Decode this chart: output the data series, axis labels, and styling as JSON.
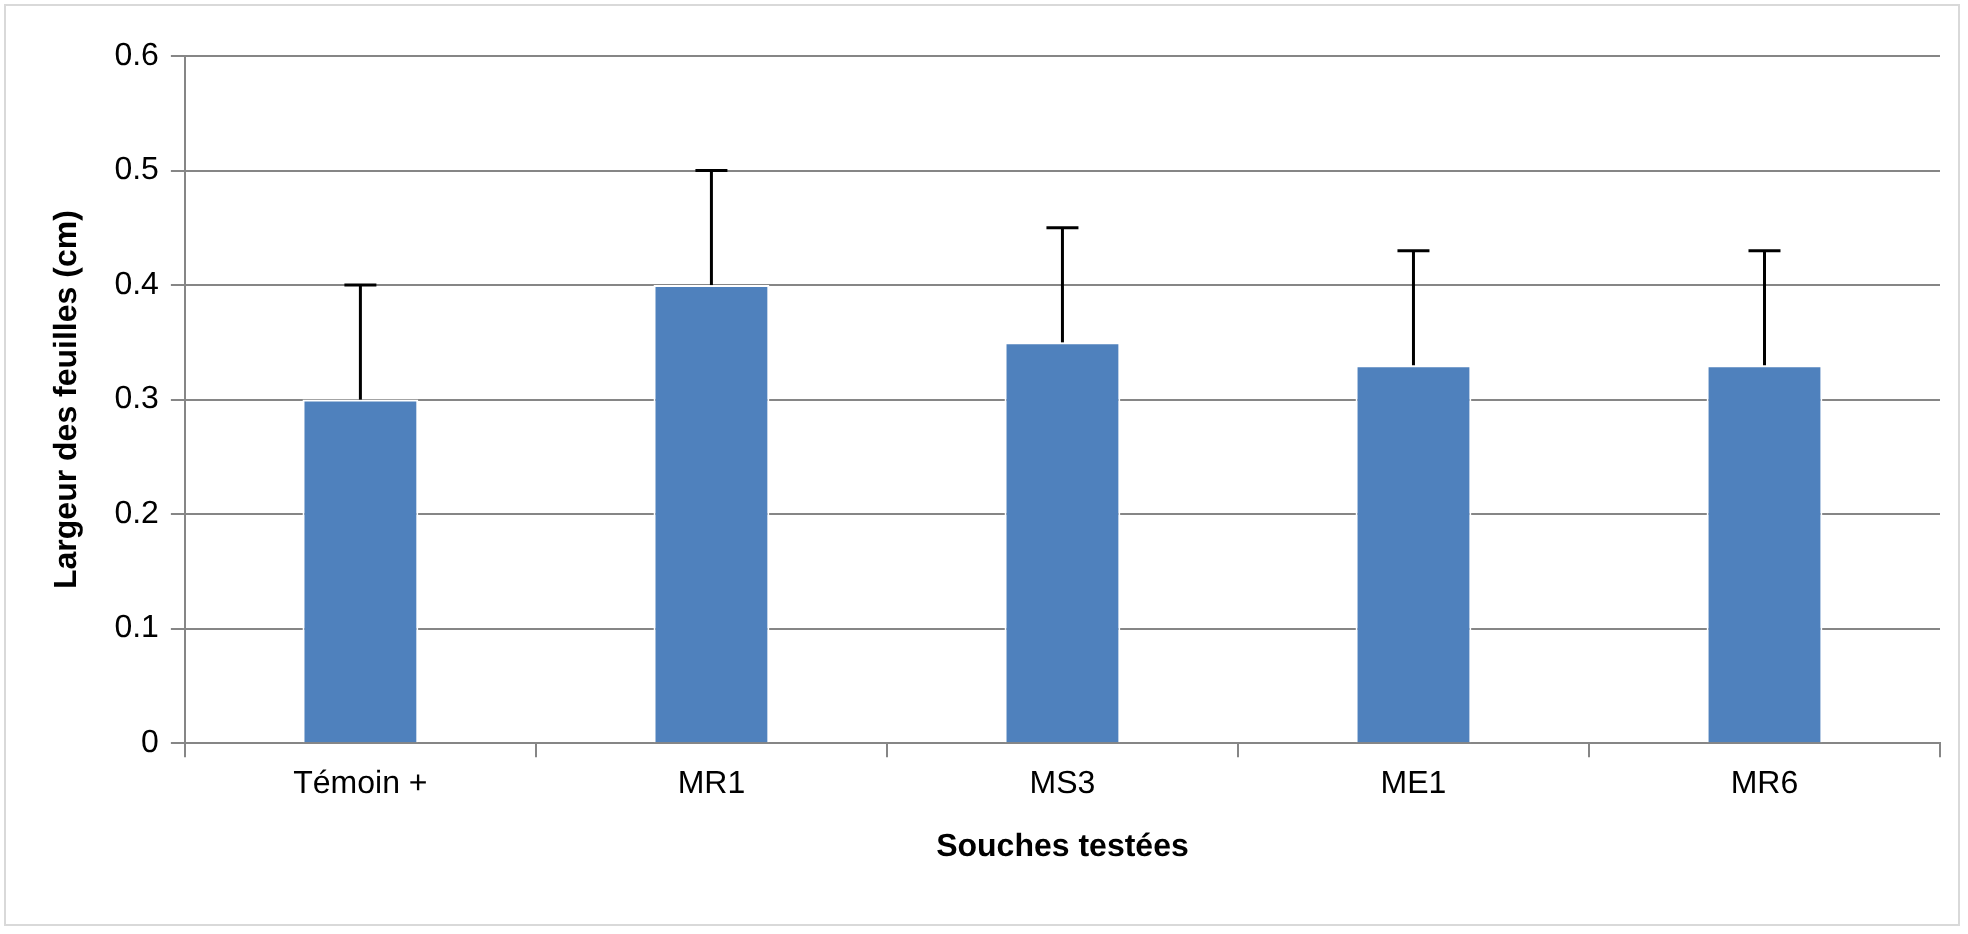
{
  "chart_data": {
    "type": "bar",
    "xlabel": "Souches testées",
    "ylabel": "Largeur des feuilles (cm)",
    "categories": [
      "Témoin +",
      "MR1",
      "MS3",
      "ME1",
      "MR6"
    ],
    "values": [
      0.3,
      0.4,
      0.35,
      0.33,
      0.33
    ],
    "errors": [
      [
        0.3,
        0.4
      ],
      [
        0.4,
        0.5
      ],
      [
        0.35,
        0.45
      ],
      [
        0.33,
        0.43
      ],
      [
        0.33,
        0.43
      ]
    ],
    "color": "#4f81bd",
    "ylim": [
      0,
      0.6
    ],
    "yticks": [
      0,
      0.1,
      0.2,
      0.3,
      0.4,
      0.5,
      0.6
    ],
    "grid": "y",
    "legend": false
  }
}
